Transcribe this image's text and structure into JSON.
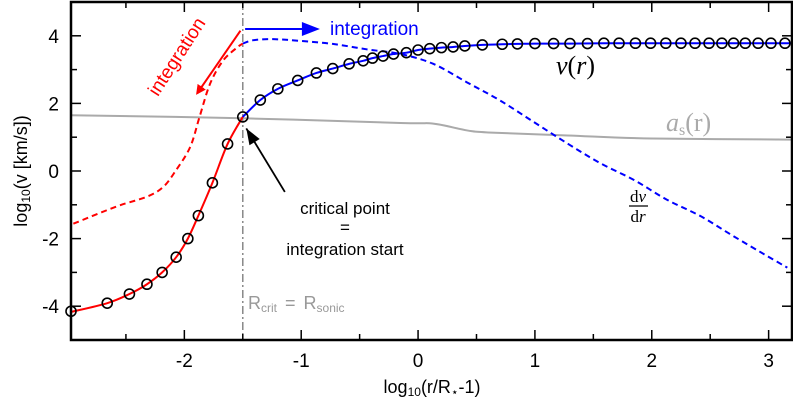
{
  "chart_data": {
    "type": "line",
    "title": "",
    "xlabel": {
      "main": "log",
      "sub": "10",
      "rest1": "(r/R",
      "rest_sub": "⋆",
      "rest2": "-1)"
    },
    "ylabel": {
      "main": "log",
      "sub": "10",
      "rest": "(v [km/s])"
    },
    "xlim": [
      -2.97,
      3.2
    ],
    "ylim": [
      -5,
      5
    ],
    "xticks": [
      -2,
      -1,
      0,
      1,
      2,
      3
    ],
    "xtick_labels": [
      "-2",
      "-1",
      "0",
      "1",
      "2",
      "3"
    ],
    "yticks": [
      -4,
      -2,
      0,
      2,
      4
    ],
    "ytick_labels": [
      "-4",
      "-2",
      "0",
      "2",
      "4"
    ],
    "grid": false,
    "colors": {
      "inward": "#ff0000",
      "outward": "#0000ff",
      "sound_speed": "#aaaaaa",
      "marker": "#000000",
      "critical_line": "#888888"
    },
    "critical_point": {
      "x": -1.5,
      "y": 1.6
    },
    "series": [
      {
        "id": "v_inward",
        "style": "solid",
        "color": "#ff0000",
        "x": [
          -2.97,
          -2.66,
          -2.47,
          -2.32,
          -2.19,
          -2.07,
          -1.97,
          -1.88,
          -1.76,
          -1.63,
          -1.5
        ],
        "y": [
          -4.17,
          -3.91,
          -3.64,
          -3.35,
          -3.0,
          -2.55,
          -2.0,
          -1.32,
          -0.35,
          0.8,
          1.6
        ]
      },
      {
        "id": "v_outward",
        "style": "solid",
        "color": "#0000ff",
        "x": [
          -1.5,
          -1.35,
          -1.2,
          -1.03,
          -0.87,
          -0.73,
          -0.59,
          -0.47,
          -0.39,
          -0.3,
          -0.21,
          -0.1,
          0,
          0.1,
          0.2,
          0.3,
          0.4,
          0.55,
          0.72,
          0.85,
          1.0,
          1.3,
          1.6,
          2.0,
          2.5,
          3.2
        ],
        "y": [
          1.6,
          2.1,
          2.43,
          2.68,
          2.9,
          3.03,
          3.17,
          3.26,
          3.34,
          3.4,
          3.46,
          3.5,
          3.58,
          3.62,
          3.65,
          3.67,
          3.7,
          3.73,
          3.75,
          3.76,
          3.77,
          3.77,
          3.78,
          3.78,
          3.78,
          3.78
        ]
      },
      {
        "id": "dvdr_inward",
        "style": "dashed",
        "color": "#ff0000",
        "x": [
          -2.95,
          -2.58,
          -2.32,
          -2.18,
          -2.07,
          -1.95,
          -1.87,
          -1.78,
          -1.67,
          -1.55,
          -1.5
        ],
        "y": [
          -1.56,
          -1.05,
          -0.76,
          -0.47,
          0.03,
          0.71,
          1.6,
          2.58,
          3.26,
          3.65,
          3.77
        ]
      },
      {
        "id": "dvdr_outward",
        "style": "dashed",
        "color": "#0000ff",
        "x": [
          -1.5,
          -1.41,
          -1.24,
          -1.01,
          -0.73,
          -0.44,
          -0.15,
          0.13,
          0.42,
          0.7,
          0.99,
          1.28,
          1.56,
          1.85,
          2.13,
          2.42,
          2.7,
          2.99,
          3.16
        ],
        "y": [
          3.77,
          3.87,
          3.9,
          3.85,
          3.76,
          3.6,
          3.46,
          3.17,
          2.62,
          2.09,
          1.45,
          0.81,
          0.23,
          -0.27,
          -0.85,
          -1.34,
          -1.93,
          -2.52,
          -2.86
        ]
      },
      {
        "id": "a_s",
        "style": "solid",
        "color": "#aaaaaa",
        "x": [
          -2.97,
          -1.5,
          -0.15,
          0.13,
          0.42,
          0.6,
          1.28,
          2.0,
          3.2
        ],
        "y": [
          1.65,
          1.56,
          1.42,
          1.4,
          1.2,
          1.14,
          1.05,
          0.96,
          0.93
        ]
      }
    ],
    "markers": {
      "x": [
        -2.97,
        -2.66,
        -2.47,
        -2.32,
        -2.19,
        -2.07,
        -1.97,
        -1.88,
        -1.76,
        -1.63,
        -1.5,
        -1.35,
        -1.2,
        -1.03,
        -0.87,
        -0.73,
        -0.59,
        -0.47,
        -0.39,
        -0.3,
        -0.21,
        -0.1,
        0,
        0.1,
        0.2,
        0.3,
        0.4,
        0.55,
        0.72,
        0.85,
        1.0,
        1.16,
        1.3,
        1.45,
        1.59,
        1.72,
        1.86,
        1.99,
        2.12,
        2.25,
        2.37,
        2.49,
        2.6,
        2.7,
        2.8,
        2.91,
        3.02,
        3.14
      ],
      "y": [
        -4.15,
        -3.91,
        -3.64,
        -3.35,
        -3.0,
        -2.55,
        -2.0,
        -1.32,
        -0.35,
        0.8,
        1.6,
        2.1,
        2.43,
        2.68,
        2.9,
        3.03,
        3.17,
        3.26,
        3.34,
        3.4,
        3.46,
        3.5,
        3.58,
        3.62,
        3.65,
        3.67,
        3.7,
        3.73,
        3.75,
        3.76,
        3.77,
        3.77,
        3.77,
        3.77,
        3.78,
        3.78,
        3.78,
        3.78,
        3.78,
        3.78,
        3.78,
        3.78,
        3.78,
        3.78,
        3.78,
        3.78,
        3.78,
        3.78
      ]
    },
    "annotations": {
      "integration_out": "integration",
      "integration_in": "integration",
      "critical_line1": "critical point",
      "critical_line2": "=",
      "critical_line3": "integration start",
      "rcrit": {
        "r1": "R",
        "s1": "crit",
        "eq": "=",
        "r2": "R",
        "s2": "sonic"
      },
      "v_label": {
        "v": "v",
        "open": "(",
        "r": "r",
        "close": ")"
      },
      "as_label": {
        "a": "a",
        "s": "s",
        "rest": "(r)"
      },
      "dvdr": {
        "num_d": "d",
        "num_v": "v",
        "den_d": "d",
        "den_r": "r"
      }
    }
  }
}
